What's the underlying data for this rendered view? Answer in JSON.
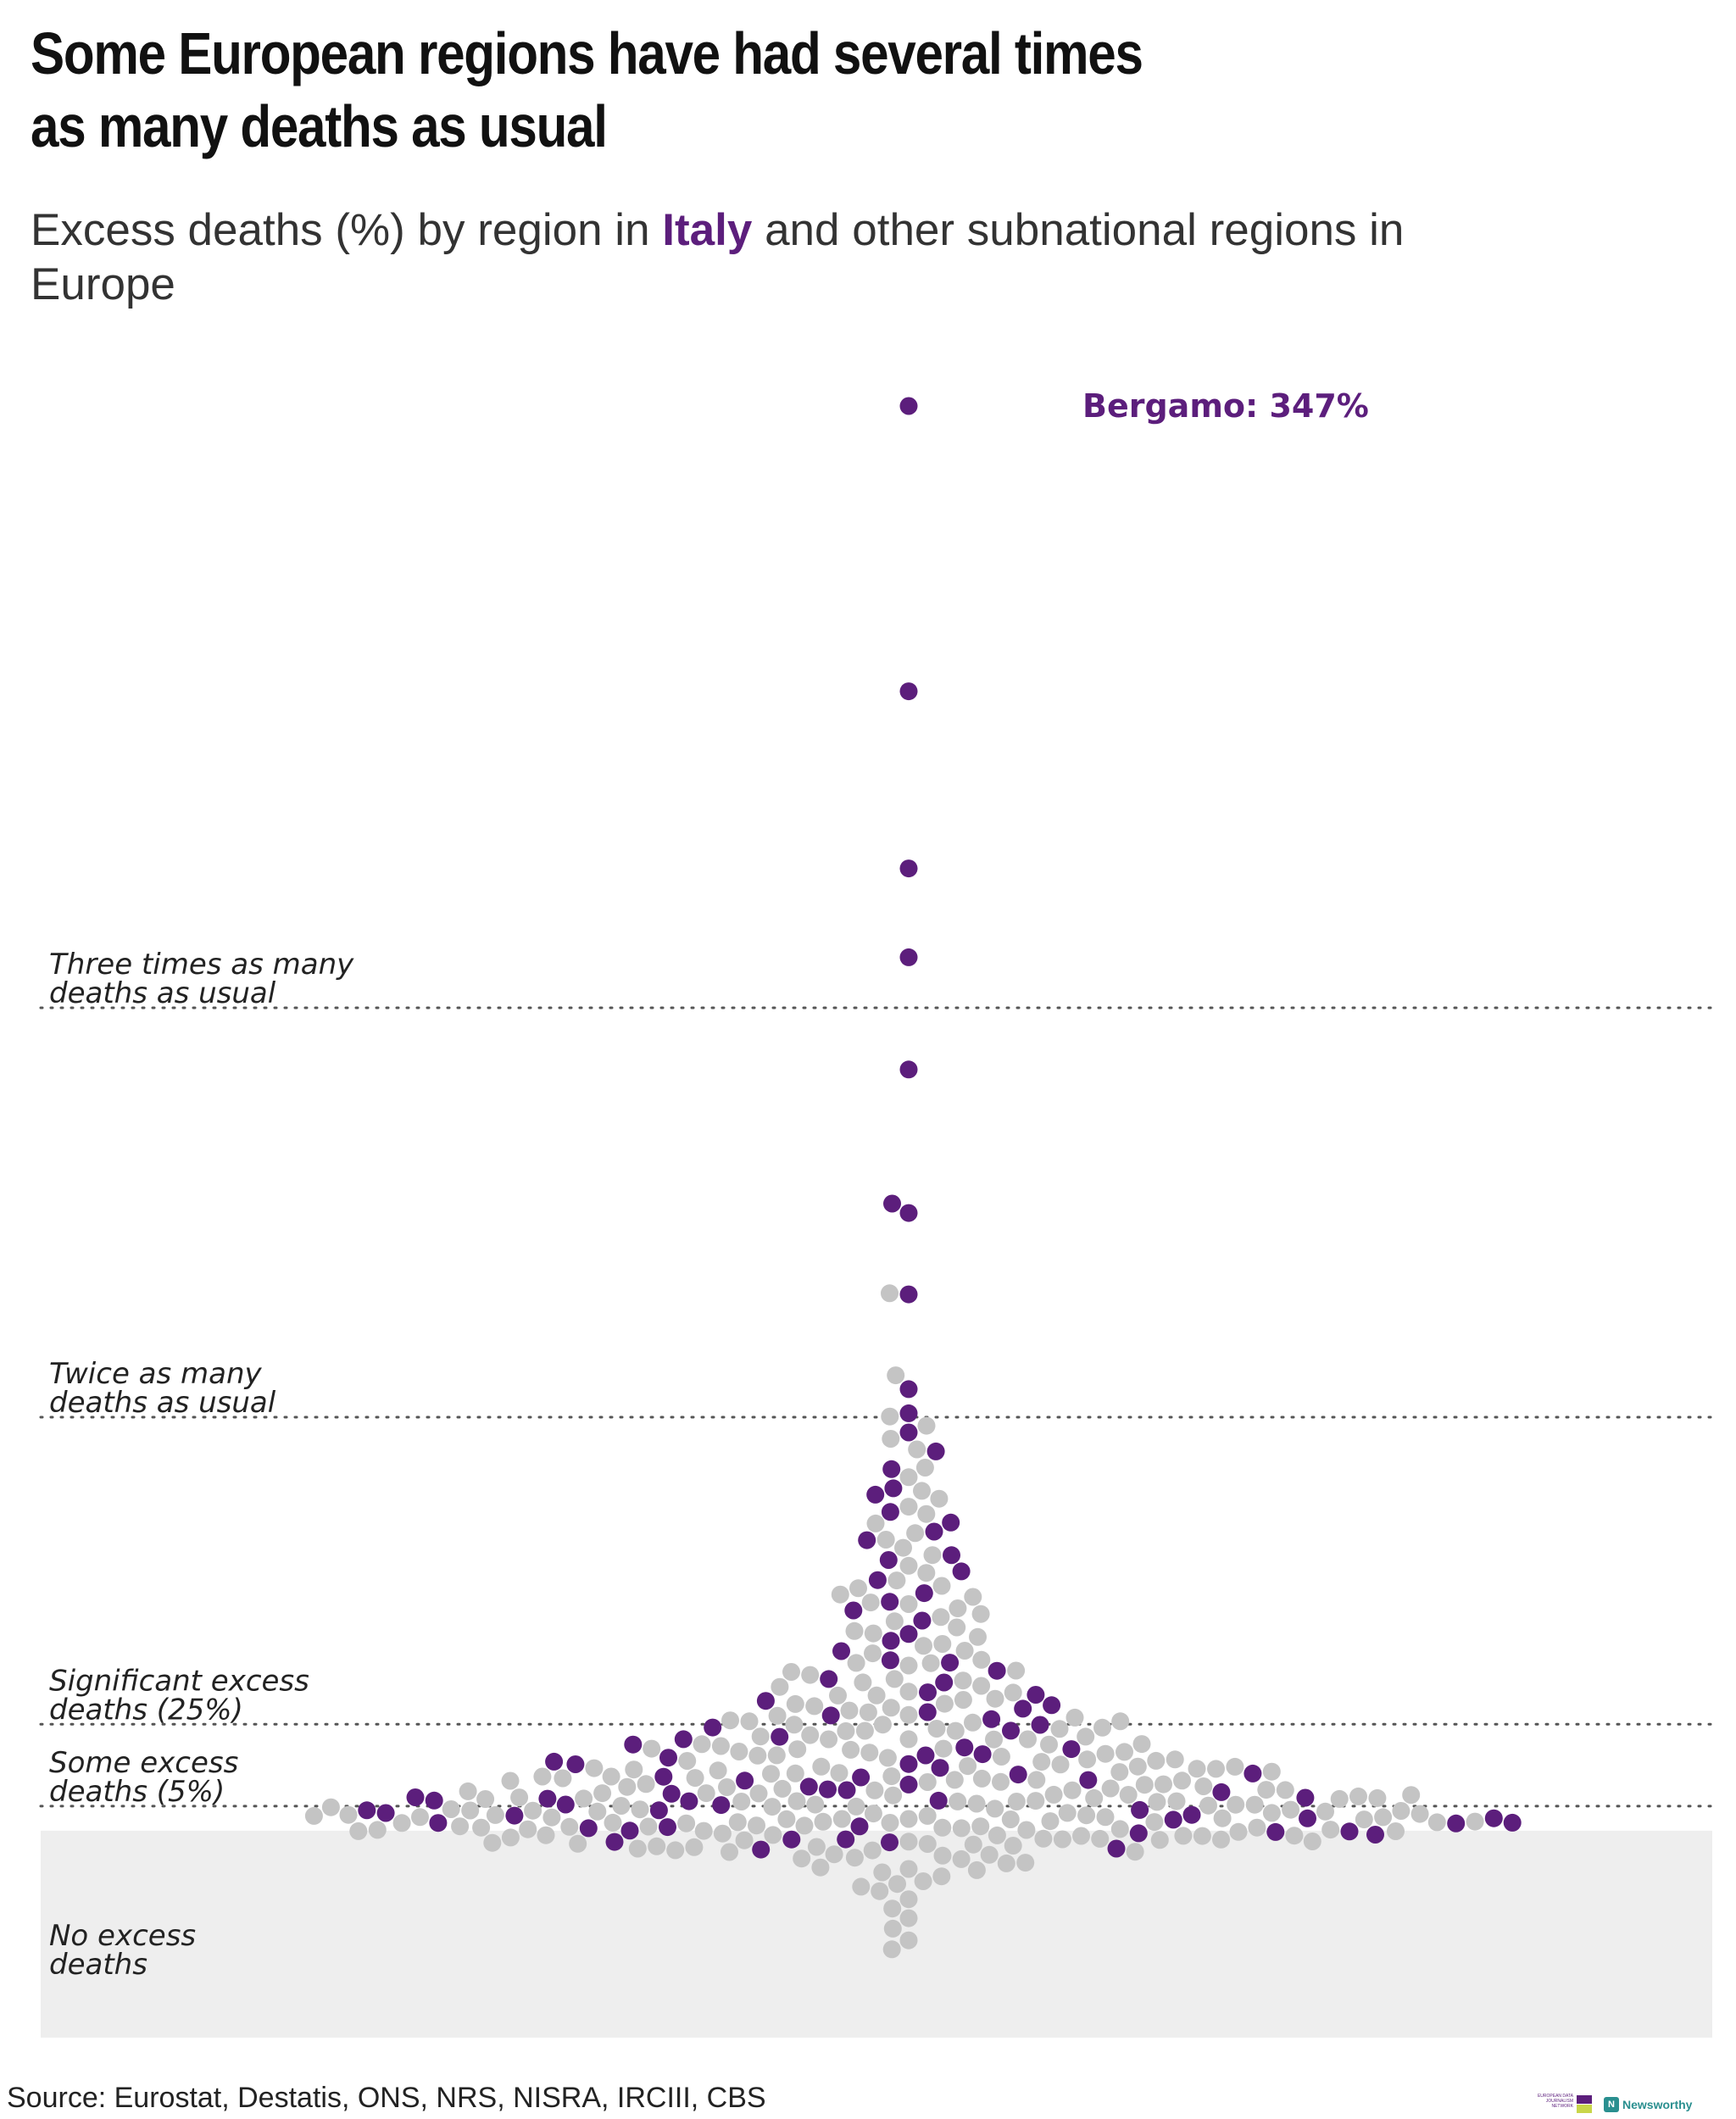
{
  "chart_data": {
    "type": "scatter",
    "title_line1": "Some European regions have had several times",
    "title_line2": "as many deaths as usual",
    "subtitle_before": "Excess deaths (%) by region in ",
    "subtitle_highlight": "Italy",
    "subtitle_after": " and other subnational regions in Europe",
    "bands": [
      {
        "value": 200,
        "label_line1": "Three times as many",
        "label_line2": "deaths as usual"
      },
      {
        "value": 100,
        "label_line1": "Twice as many",
        "label_line2": "deaths as usual"
      },
      {
        "value": 25,
        "label_line1": "Significant excess",
        "label_line2": "deaths (25%)"
      },
      {
        "value": 5,
        "label_line1": "Some excess",
        "label_line2": "deaths (5%)"
      }
    ],
    "no_excess_label_line1": "No excess",
    "no_excess_label_line2": "deaths",
    "callout": {
      "region": "Bergamo",
      "value": 347,
      "text": "Bergamo: 347%"
    },
    "series": [
      {
        "name": "Italy",
        "color": "#5c1e7c",
        "values": [
          347,
          277,
          234,
          212,
          185,
          152,
          150,
          130,
          107,
          101,
          96,
          92,
          87,
          83,
          81,
          77,
          74,
          72,
          70,
          66,
          65,
          62,
          60,
          57,
          55,
          53,
          50,
          47,
          45,
          43,
          41,
          40,
          38,
          36,
          35,
          33,
          32,
          31,
          30,
          29,
          28,
          27,
          26,
          25,
          24,
          23,
          22,
          21,
          20,
          19,
          19,
          18,
          17,
          17,
          16,
          15,
          15,
          14,
          13,
          13,
          12,
          12,
          11,
          11,
          10,
          10,
          9,
          9,
          8,
          8,
          7,
          7,
          7,
          6,
          6,
          6,
          5,
          5,
          4,
          4,
          4,
          3,
          3,
          3,
          2,
          2,
          2,
          1,
          1,
          1,
          0,
          0,
          0,
          -1,
          -1,
          -1,
          -2,
          -2,
          -3,
          -3,
          -4,
          -4,
          -5,
          -6
        ]
      },
      {
        "color": "#c4c4c4",
        "values": [
          130,
          110,
          100,
          98,
          95,
          92,
          88,
          85,
          82,
          80,
          78,
          76,
          74,
          72,
          70,
          68,
          66,
          64,
          62,
          60,
          59,
          58,
          57,
          56,
          55,
          54,
          53,
          52,
          51,
          50,
          49,
          48,
          47,
          46,
          45,
          44,
          43,
          42,
          41,
          40,
          40,
          39,
          38,
          38,
          37,
          36,
          36,
          35,
          34,
          34,
          33,
          33,
          32,
          32,
          31,
          31,
          30,
          30,
          29,
          29,
          28,
          28,
          27,
          27,
          27,
          26,
          26,
          26,
          25,
          25,
          25,
          24,
          24,
          24,
          23,
          23,
          23,
          22,
          22,
          22,
          21,
          21,
          21,
          21,
          20,
          20,
          20,
          20,
          19,
          19,
          19,
          19,
          18,
          18,
          18,
          18,
          17,
          17,
          17,
          17,
          16,
          16,
          16,
          16,
          16,
          15,
          15,
          15,
          15,
          15,
          14,
          14,
          14,
          14,
          14,
          13,
          13,
          13,
          13,
          13,
          12,
          12,
          12,
          12,
          12,
          12,
          11,
          11,
          11,
          11,
          11,
          11,
          10,
          10,
          10,
          10,
          10,
          10,
          9,
          9,
          9,
          9,
          9,
          9,
          9,
          8,
          8,
          8,
          8,
          8,
          8,
          8,
          7,
          7,
          7,
          7,
          7,
          7,
          7,
          6,
          6,
          6,
          6,
          6,
          6,
          6,
          6,
          5,
          5,
          5,
          5,
          5,
          5,
          5,
          5,
          4,
          4,
          4,
          4,
          4,
          4,
          4,
          4,
          4,
          3,
          3,
          3,
          3,
          3,
          3,
          3,
          3,
          3,
          2,
          2,
          2,
          2,
          2,
          2,
          2,
          2,
          2,
          2,
          1,
          1,
          1,
          1,
          1,
          1,
          1,
          1,
          1,
          1,
          0,
          0,
          0,
          0,
          0,
          0,
          0,
          0,
          0,
          0,
          -1,
          -1,
          -1,
          -1,
          -1,
          -1,
          -1,
          -1,
          -1,
          -2,
          -2,
          -2,
          -2,
          -2,
          -2,
          -2,
          -2,
          -3,
          -3,
          -3,
          -3,
          -3,
          -3,
          -3,
          -4,
          -4,
          -4,
          -4,
          -4,
          -4,
          -5,
          -5,
          -5,
          -5,
          -5,
          -6,
          -6,
          -6,
          -6,
          -7,
          -7,
          -7,
          -8,
          -8,
          -8,
          -9,
          -9,
          -10,
          -10,
          -11,
          -11,
          -12,
          -13,
          -14,
          -15,
          -16,
          -18,
          -20,
          -22,
          -25,
          -28,
          -30
        ]
      }
    ],
    "ylim": [
      -50,
      350
    ],
    "grid": false
  },
  "source": "Source: Eurostat, Destatis, ONS, NRS, NISRA, IRCIII, CBS",
  "logos": {
    "edjnet_text": "EUROPEAN DATA JOURNALISM NETWORK",
    "newsworthy_mark": "N",
    "newsworthy_name": "Newsworthy"
  }
}
